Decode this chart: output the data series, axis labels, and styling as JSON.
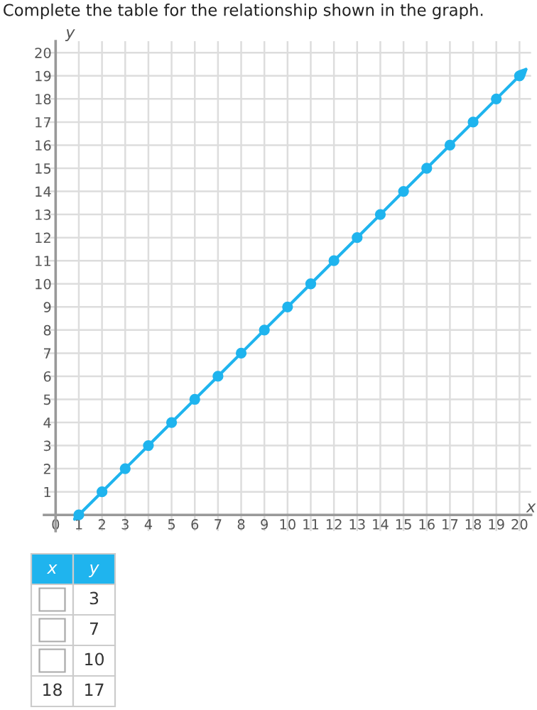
{
  "chart_data": {
    "type": "line",
    "title": "Complete the table for the relationship shown in the graph.",
    "xlabel": "x",
    "ylabel": "y",
    "x": [
      1,
      2,
      3,
      4,
      5,
      6,
      7,
      8,
      9,
      10,
      11,
      12,
      13,
      14,
      15,
      16,
      17,
      18,
      19,
      20
    ],
    "series": [
      {
        "color": "#1fb4ee",
        "values": [
          0,
          1,
          2,
          3,
          4,
          5,
          6,
          7,
          8,
          9,
          10,
          11,
          12,
          13,
          14,
          15,
          16,
          17,
          18,
          19
        ]
      }
    ],
    "xlim": [
      -0.5,
      20.5
    ],
    "ylim": [
      -0.7,
      20.5
    ],
    "xticks": [
      0,
      1,
      2,
      3,
      4,
      5,
      6,
      7,
      8,
      9,
      10,
      11,
      12,
      13,
      14,
      15,
      16,
      17,
      18,
      19,
      20
    ],
    "yticks": [
      1,
      2,
      3,
      4,
      5,
      6,
      7,
      8,
      9,
      10,
      11,
      12,
      13,
      14,
      15,
      16,
      17,
      18,
      19,
      20
    ],
    "grid": true,
    "marker": "circle",
    "line_style": "solid",
    "annotations": [
      "x",
      "y",
      null,
      "3",
      null,
      "7",
      null,
      "10",
      "18",
      "17"
    ]
  }
}
